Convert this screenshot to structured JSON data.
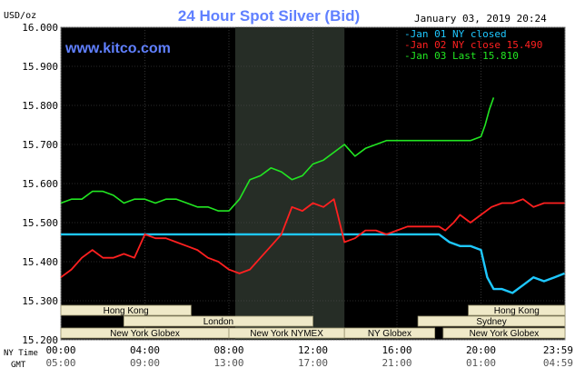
{
  "chart_data": {
    "type": "line",
    "title": "24 Hour Spot Silver (Bid)",
    "unit_label": "USD/oz",
    "timestamp": "January 03, 2019 20:24",
    "watermark": "www.kitco.com",
    "ylim": [
      15.2,
      16.0
    ],
    "y_ticks": [
      "16.000",
      "15.900",
      "15.800",
      "15.700",
      "15.600",
      "15.500",
      "15.400",
      "15.300",
      "15.200"
    ],
    "x_row_labels": {
      "ny": "NY Time",
      "gmt": "GMT"
    },
    "x_ticks_ny": [
      "00:00",
      "04:00",
      "08:00",
      "12:00",
      "16:00",
      "20:00",
      "23:59"
    ],
    "x_ticks_gmt": [
      "05:00",
      "09:00",
      "13:00",
      "17:00",
      "21:00",
      "01:00",
      "04:59"
    ],
    "colors": {
      "background": "#000000",
      "title": "#6080ff",
      "shade": "#262d26",
      "grid": "#555555",
      "jan01": "#1ec8ff",
      "jan02": "#ff2020",
      "jan03": "#22e622",
      "session_bar": "#efe9c8"
    },
    "legend": [
      {
        "label": "Jan 01 NY closed",
        "color": "#1ec8ff"
      },
      {
        "label": "Jan 02 NY close 15.490",
        "color": "#ff2020"
      },
      {
        "label": "Jan 03 Last 15.810",
        "color": "#22e622"
      }
    ],
    "sessions": [
      {
        "label": "Hong Kong",
        "start": 0.0,
        "end": 6.2
      },
      {
        "label": "Hong Kong",
        "start": 19.4,
        "end": 24.0
      },
      {
        "label": "London",
        "start": 3.0,
        "end": 12.0
      },
      {
        "label": "Sydney",
        "start": 17.0,
        "end": 24.0
      },
      {
        "label": "New York Globex",
        "start": 0.0,
        "end": 8.0
      },
      {
        "label": "New York NYMEX",
        "start": 8.0,
        "end": 13.5
      },
      {
        "label": "NY Globex",
        "start": 13.5,
        "end": 17.8
      },
      {
        "label": "New York Globex",
        "start": 18.2,
        "end": 24.0
      }
    ],
    "shade_hours": [
      8.3,
      13.5
    ],
    "series": [
      {
        "name": "Jan 01 NY closed",
        "x": [
          0,
          17.5,
          18.0,
          18.5,
          19.0,
          19.5,
          20.0,
          20.3,
          20.6,
          21.0,
          21.5,
          22.0,
          22.5,
          23.0,
          23.5,
          23.98
        ],
        "y": [
          15.47,
          15.47,
          15.47,
          15.45,
          15.44,
          15.44,
          15.43,
          15.36,
          15.33,
          15.33,
          15.32,
          15.34,
          15.36,
          15.35,
          15.36,
          15.37
        ]
      },
      {
        "name": "Jan 02 NY close 15.490",
        "x": [
          0,
          0.5,
          1.0,
          1.5,
          2.0,
          2.5,
          3.0,
          3.5,
          4.0,
          4.5,
          5.0,
          5.5,
          6.0,
          6.5,
          7.0,
          7.5,
          8.0,
          8.5,
          9.0,
          9.5,
          10.0,
          10.5,
          11.0,
          11.5,
          12.0,
          12.5,
          13.0,
          13.5,
          14.0,
          14.5,
          15.0,
          15.5,
          16.0,
          16.5,
          17.0,
          17.5,
          18.0,
          18.3,
          18.7,
          19.0,
          19.5,
          20.0,
          20.5,
          21.0,
          21.5,
          22.0,
          22.5,
          23.0,
          23.5,
          23.98
        ],
        "y": [
          15.36,
          15.38,
          15.41,
          15.43,
          15.41,
          15.41,
          15.42,
          15.41,
          15.47,
          15.46,
          15.46,
          15.45,
          15.44,
          15.43,
          15.41,
          15.4,
          15.38,
          15.37,
          15.38,
          15.41,
          15.44,
          15.47,
          15.54,
          15.53,
          15.55,
          15.54,
          15.56,
          15.45,
          15.46,
          15.48,
          15.48,
          15.47,
          15.48,
          15.49,
          15.49,
          15.49,
          15.49,
          15.48,
          15.5,
          15.52,
          15.5,
          15.52,
          15.54,
          15.55,
          15.55,
          15.56,
          15.54,
          15.55,
          15.55,
          15.55
        ]
      },
      {
        "name": "Jan 03 Last 15.810",
        "x": [
          0,
          0.5,
          1.0,
          1.5,
          2.0,
          2.5,
          3.0,
          3.5,
          4.0,
          4.5,
          5.0,
          5.5,
          6.0,
          6.5,
          7.0,
          7.5,
          8.0,
          8.5,
          9.0,
          9.5,
          10.0,
          10.5,
          11.0,
          11.5,
          12.0,
          12.5,
          13.0,
          13.5,
          14.0,
          14.5,
          15.0,
          15.5,
          16.0,
          16.5,
          17.0,
          17.5,
          18.0,
          18.5,
          19.0,
          19.5,
          20.0,
          20.2,
          20.4,
          20.6
        ],
        "y": [
          15.55,
          15.56,
          15.56,
          15.58,
          15.58,
          15.57,
          15.55,
          15.56,
          15.56,
          15.55,
          15.56,
          15.56,
          15.55,
          15.54,
          15.54,
          15.53,
          15.53,
          15.56,
          15.61,
          15.62,
          15.64,
          15.63,
          15.61,
          15.62,
          15.65,
          15.66,
          15.68,
          15.7,
          15.67,
          15.69,
          15.7,
          15.71,
          15.71,
          15.71,
          15.71,
          15.71,
          15.71,
          15.71,
          15.71,
          15.71,
          15.72,
          15.75,
          15.79,
          15.82
        ]
      }
    ]
  }
}
